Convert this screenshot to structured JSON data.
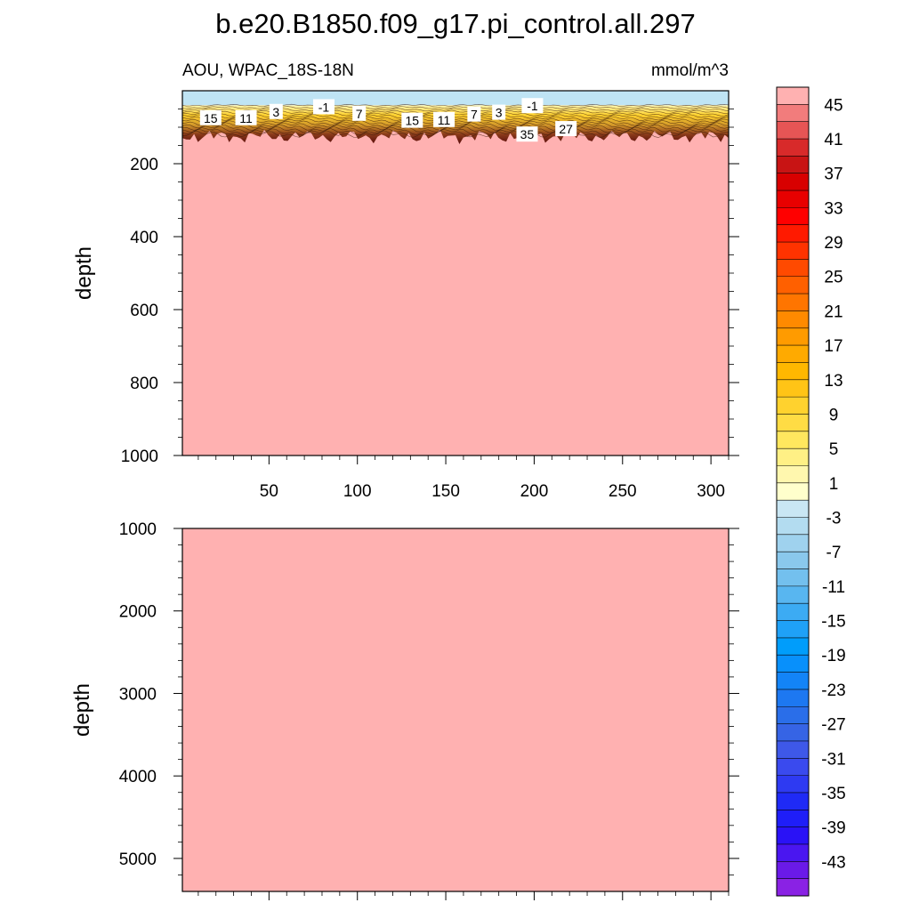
{
  "title": "b.e20.B1850.f09_g17.pi_control.all.297",
  "subtitle_left": "AOU, WPAC_18S-18N",
  "subtitle_right": "mmol/m^3",
  "colors": {
    "background_fill": "#ffb1b1",
    "surface_band": "#bfe4f4"
  },
  "chart_data": [
    {
      "type": "heatmap",
      "panel": "top",
      "xlabel": "",
      "ylabel": "depth",
      "xlim": [
        1,
        310
      ],
      "ylim": [
        0,
        1000
      ],
      "y_inverted": true,
      "x_ticks": [
        50,
        100,
        150,
        200,
        250,
        300
      ],
      "y_ticks": [
        200,
        400,
        600,
        800,
        1000
      ],
      "surface_band_depth": [
        0,
        40
      ],
      "gradient_layer_depth": [
        40,
        125
      ],
      "contour_labels": [
        {
          "text": "15",
          "x": 17,
          "depth": 75
        },
        {
          "text": "11",
          "x": 37,
          "depth": 75
        },
        {
          "text": "3",
          "x": 54,
          "depth": 58
        },
        {
          "text": "-1",
          "x": 81,
          "depth": 45
        },
        {
          "text": "7",
          "x": 101,
          "depth": 63
        },
        {
          "text": "15",
          "x": 131,
          "depth": 82
        },
        {
          "text": "11",
          "x": 149,
          "depth": 80
        },
        {
          "text": "7",
          "x": 166,
          "depth": 65
        },
        {
          "text": "3",
          "x": 180,
          "depth": 60
        },
        {
          "text": "-1",
          "x": 199,
          "depth": 42
        },
        {
          "text": "35",
          "x": 196,
          "depth": 120
        },
        {
          "text": "27",
          "x": 218,
          "depth": 105
        }
      ]
    },
    {
      "type": "heatmap",
      "panel": "bottom",
      "xlabel": "",
      "ylabel": "depth",
      "xlim": [
        1,
        310
      ],
      "ylim": [
        1000,
        5400
      ],
      "y_inverted": true,
      "y_ticks": [
        1000,
        2000,
        3000,
        4000,
        5000
      ]
    }
  ],
  "colorbar": {
    "min": -47,
    "max": 49,
    "step": 2,
    "labels": [
      "45",
      "41",
      "37",
      "33",
      "29",
      "25",
      "21",
      "17",
      "13",
      "9",
      "5",
      "1",
      "-3",
      "-7",
      "-11",
      "-15",
      "-19",
      "-23",
      "-27",
      "-31",
      "-35",
      "-39",
      "-43"
    ],
    "colors_top_to_bottom": [
      "#ffb1b1",
      "#f27c7c",
      "#e65555",
      "#d82a2a",
      "#c81414",
      "#d80000",
      "#e80000",
      "#ff0000",
      "#ff1a00",
      "#ff3300",
      "#ff4a00",
      "#ff6000",
      "#ff7500",
      "#ff8a00",
      "#ff9b00",
      "#ffaa00",
      "#ffb800",
      "#ffc416",
      "#ffd22e",
      "#ffdc44",
      "#ffe75e",
      "#fff085",
      "#fff7ae",
      "#ffffcc",
      "#c9e6f3",
      "#b3dcf0",
      "#9fd2ee",
      "#8ac8ec",
      "#73c0ee",
      "#58b6f0",
      "#3cabf3",
      "#1fa1f7",
      "#009dfb",
      "#0890fb",
      "#1384f7",
      "#1d78f1",
      "#2a6ee9",
      "#3664e5",
      "#3e58e8",
      "#3a4aee",
      "#2e3af2",
      "#1f2af6",
      "#1f1ef8",
      "#2a12f6",
      "#4a16f0",
      "#6a1ae8",
      "#8a22e4"
    ]
  }
}
